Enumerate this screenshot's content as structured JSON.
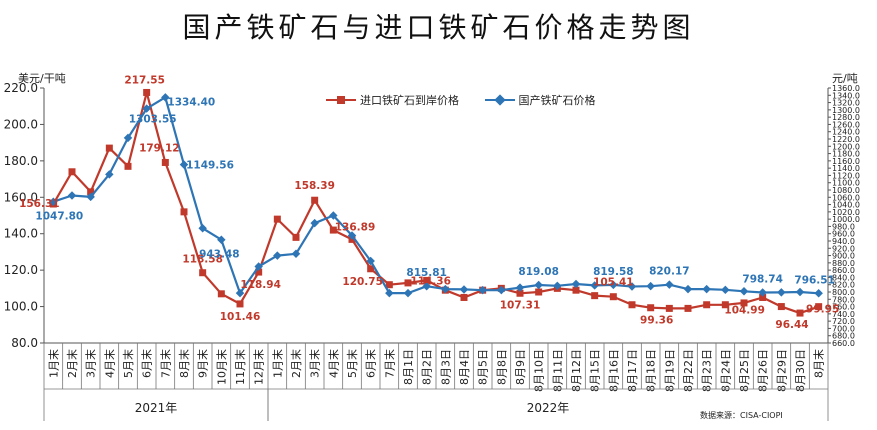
{
  "title": "国产铁矿石与进口铁矿石价格走势图",
  "source": "数据来源：CISA-CIOPI",
  "colors": {
    "imported": "#c0392b",
    "domestic": "#2e75b6",
    "label_red": "#c0392b",
    "label_blue": "#2e75b6"
  },
  "chart_data": {
    "type": "line",
    "title": "国产铁矿石与进口铁矿石价格走势图",
    "y_left": {
      "label": "美元/干吨",
      "min": 80,
      "max": 220,
      "step": 20,
      "ticks": [
        "80.0",
        "100.0",
        "120.0",
        "140.0",
        "160.0",
        "180.0",
        "200.0",
        "220.0"
      ]
    },
    "y_right": {
      "label": "元/吨",
      "min": 660,
      "max": 1360,
      "step": 20,
      "ticks": [
        "660.0",
        "680.0",
        "700.0",
        "720.0",
        "740.0",
        "760.0",
        "780.0",
        "800.0",
        "820.0",
        "840.0",
        "860.0",
        "880.0",
        "900.0",
        "920.0",
        "940.0",
        "960.0",
        "980.0",
        "1000.0",
        "1020.0",
        "1040.0",
        "1060.0",
        "1080.0",
        "1100.0",
        "1120.0",
        "1140.0",
        "1160.0",
        "1180.0",
        "1200.0",
        "1220.0",
        "1240.0",
        "1260.0",
        "1280.0",
        "1300.0",
        "1320.0",
        "1340.0",
        "1360.0"
      ]
    },
    "categories": [
      "1月末",
      "2月末",
      "3月末",
      "4月末",
      "5月末",
      "6月末",
      "7月末",
      "8月末",
      "9月末",
      "10月末",
      "11月末",
      "12月末",
      "1月末",
      "2月末",
      "3月末",
      "4月末",
      "5月末",
      "6月末",
      "7月末",
      "8月1日",
      "8月2日",
      "8月3日",
      "8月4日",
      "8月5日",
      "8月8日",
      "8月9日",
      "8月10日",
      "8月11日",
      "8月12日",
      "8月15日",
      "8月16日",
      "8月17日",
      "8月18日",
      "8月19日",
      "8月22日",
      "8月23日",
      "8月24日",
      "8月25日",
      "8月26日",
      "8月29日",
      "8月30日",
      "8月末"
    ],
    "year_groups": [
      {
        "label": "2021年",
        "start": 0,
        "end": 11
      },
      {
        "label": "2022年",
        "start": 12,
        "end": 41
      }
    ],
    "series": [
      {
        "name": "进口铁矿石到岸价格",
        "axis": "left",
        "marker": "square",
        "values": [
          156.31,
          174,
          163,
          187,
          177,
          217.55,
          179.12,
          152,
          118.58,
          107,
          101.46,
          118.94,
          148,
          138,
          158.39,
          142,
          136.89,
          120.75,
          112,
          113,
          114.36,
          109,
          105,
          109,
          110,
          107.31,
          108,
          110,
          109,
          106,
          105.41,
          101,
          99.36,
          99,
          99,
          101,
          101,
          102,
          104.99,
          100,
          96.44,
          99.95
        ]
      },
      {
        "name": "国产铁矿石价格",
        "axis": "right",
        "marker": "diamond",
        "values": [
          1047.8,
          1065,
          1061,
          1123,
          1223,
          1303.55,
          1334.4,
          1149.56,
          975,
          943.48,
          797,
          870,
          900,
          905,
          989,
          1010,
          955,
          885,
          797,
          797,
          815.81,
          808,
          807,
          805,
          805,
          812,
          819.08,
          817,
          822,
          818,
          819.58,
          815,
          816,
          820.17,
          808,
          808,
          806,
          802,
          798.74,
          799,
          800,
          796.51
        ]
      }
    ],
    "annotations": [
      {
        "series": 0,
        "index": 0,
        "text": "156.31"
      },
      {
        "series": 0,
        "index": 5,
        "text": "217.55"
      },
      {
        "series": 0,
        "index": 6,
        "text": "179.12"
      },
      {
        "series": 0,
        "index": 8,
        "text": "118.58"
      },
      {
        "series": 0,
        "index": 10,
        "text": "101.46"
      },
      {
        "series": 0,
        "index": 11,
        "text": "118.94"
      },
      {
        "series": 0,
        "index": 14,
        "text": "158.39"
      },
      {
        "series": 0,
        "index": 16,
        "text": "136.89"
      },
      {
        "series": 0,
        "index": 17,
        "text": "120.75"
      },
      {
        "series": 0,
        "index": 20,
        "text": "114.36"
      },
      {
        "series": 0,
        "index": 25,
        "text": "107.31"
      },
      {
        "series": 0,
        "index": 30,
        "text": "105.41"
      },
      {
        "series": 0,
        "index": 32,
        "text": "99.36"
      },
      {
        "series": 0,
        "index": 38,
        "text": "104.99"
      },
      {
        "series": 0,
        "index": 40,
        "text": "96.44"
      },
      {
        "series": 0,
        "index": 41,
        "text": "99.95"
      },
      {
        "series": 1,
        "index": 0,
        "text": "1047.80"
      },
      {
        "series": 1,
        "index": 5,
        "text": "1303.55"
      },
      {
        "series": 1,
        "index": 6,
        "text": "1334.40"
      },
      {
        "series": 1,
        "index": 7,
        "text": "1149.56"
      },
      {
        "series": 1,
        "index": 9,
        "text": "943.48"
      },
      {
        "series": 1,
        "index": 20,
        "text": "815.81"
      },
      {
        "series": 1,
        "index": 26,
        "text": "819.08"
      },
      {
        "series": 1,
        "index": 30,
        "text": "819.58"
      },
      {
        "series": 1,
        "index": 33,
        "text": "820.17"
      },
      {
        "series": 1,
        "index": 38,
        "text": "798.74"
      },
      {
        "series": 1,
        "index": 41,
        "text": "796.51"
      }
    ]
  }
}
